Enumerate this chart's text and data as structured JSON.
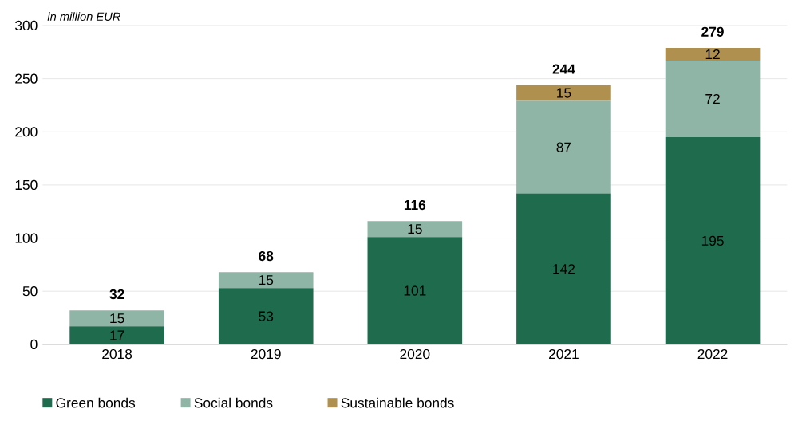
{
  "chart_data": {
    "type": "bar",
    "stacked": true,
    "ylabel": "in million EUR",
    "categories": [
      "2018",
      "2019",
      "2020",
      "2021",
      "2022"
    ],
    "series": [
      {
        "name": "Green bonds",
        "color": "#1f6b4e",
        "values": [
          17,
          53,
          101,
          142,
          195
        ]
      },
      {
        "name": "Social bonds",
        "color": "#8fb5a6",
        "values": [
          15,
          15,
          15,
          87,
          72
        ]
      },
      {
        "name": "Sustainable bonds",
        "color": "#b0904f",
        "values": [
          null,
          null,
          null,
          15,
          12
        ]
      }
    ],
    "totals": [
      "32",
      "68",
      "116",
      "244",
      "279"
    ],
    "data_labels": true,
    "ylim": [
      0,
      300
    ],
    "yticks": [
      0,
      50,
      100,
      150,
      200,
      250,
      300
    ],
    "grid": "y",
    "legend": "bottom left"
  }
}
